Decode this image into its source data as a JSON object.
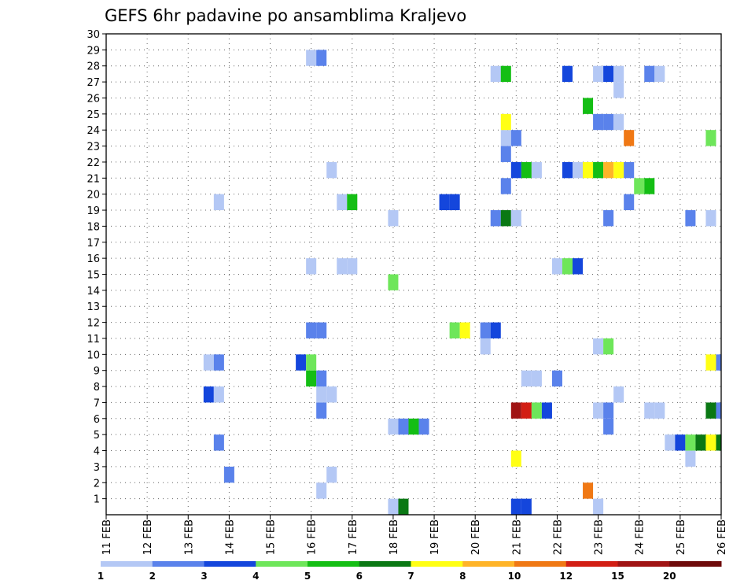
{
  "chart_data": {
    "type": "heatmap",
    "title": "GEFS 6hr padavine po ansamblima Kraljevo",
    "xlabel": "",
    "ylabel": "",
    "x_tick_labels": [
      "11 FEB",
      "12 FEB",
      "13 FEB",
      "14 FEB",
      "15 FEB",
      "16 FEB",
      "17 FEB",
      "18 FEB",
      "19 FEB",
      "20 FEB",
      "21 FEB",
      "22 FEB",
      "23 FEB",
      "24 FEB",
      "25 FEB",
      "26 FEB"
    ],
    "xlim": [
      11,
      26
    ],
    "y_tick_labels": [
      "1",
      "2",
      "3",
      "4",
      "5",
      "6",
      "7",
      "8",
      "9",
      "10",
      "11",
      "12",
      "13",
      "14",
      "15",
      "16",
      "17",
      "18",
      "19",
      "20",
      "21",
      "22",
      "23",
      "24",
      "25",
      "26",
      "27",
      "28",
      "29",
      "30"
    ],
    "ylim": [
      0,
      30
    ],
    "grid": true,
    "legend_position": "bottom",
    "colorbar": {
      "colors": [
        "#b4c8f5",
        "#5a82eb",
        "#1446dc",
        "#6ee65a",
        "#14be14",
        "#0a7814",
        "#ffff14",
        "#ffb428",
        "#f07814",
        "#d21e14",
        "#a01414",
        "#6e0a0a"
      ],
      "labels": [
        "1",
        "2",
        "3",
        "4",
        "5",
        "6",
        "7",
        "8",
        "10",
        "12",
        "15",
        "20"
      ]
    },
    "cells": [
      {
        "x": 18.0,
        "y": 0,
        "c": 1
      },
      {
        "x": 18.25,
        "y": 0,
        "c": 6
      },
      {
        "x": 21.0,
        "y": 0,
        "c": 3
      },
      {
        "x": 21.25,
        "y": 0,
        "c": 3
      },
      {
        "x": 23.0,
        "y": 0,
        "c": 1
      },
      {
        "x": 16.25,
        "y": 1,
        "c": 1
      },
      {
        "x": 22.75,
        "y": 1,
        "c": 9
      },
      {
        "x": 14.0,
        "y": 2,
        "c": 2
      },
      {
        "x": 16.5,
        "y": 2,
        "c": 1
      },
      {
        "x": 21.0,
        "y": 3,
        "c": 7
      },
      {
        "x": 25.25,
        "y": 3,
        "c": 1
      },
      {
        "x": 13.75,
        "y": 4,
        "c": 2
      },
      {
        "x": 24.75,
        "y": 4,
        "c": 1
      },
      {
        "x": 25.0,
        "y": 4,
        "c": 3
      },
      {
        "x": 25.25,
        "y": 4,
        "c": 4
      },
      {
        "x": 25.5,
        "y": 4,
        "c": 6
      },
      {
        "x": 25.75,
        "y": 4,
        "c": 7
      },
      {
        "x": 26.0,
        "y": 4,
        "c": 6
      },
      {
        "x": 18.0,
        "y": 5,
        "c": 1
      },
      {
        "x": 18.25,
        "y": 5,
        "c": 2
      },
      {
        "x": 18.5,
        "y": 5,
        "c": 5
      },
      {
        "x": 18.75,
        "y": 5,
        "c": 2
      },
      {
        "x": 23.25,
        "y": 5,
        "c": 2
      },
      {
        "x": 16.25,
        "y": 6,
        "c": 2
      },
      {
        "x": 21.0,
        "y": 6,
        "c": 11
      },
      {
        "x": 21.25,
        "y": 6,
        "c": 10
      },
      {
        "x": 21.5,
        "y": 6,
        "c": 4
      },
      {
        "x": 21.75,
        "y": 6,
        "c": 3
      },
      {
        "x": 23.0,
        "y": 6,
        "c": 1
      },
      {
        "x": 23.25,
        "y": 6,
        "c": 2
      },
      {
        "x": 24.25,
        "y": 6,
        "c": 1
      },
      {
        "x": 24.5,
        "y": 6,
        "c": 1
      },
      {
        "x": 25.75,
        "y": 6,
        "c": 6
      },
      {
        "x": 26.0,
        "y": 6,
        "c": 2
      },
      {
        "x": 13.5,
        "y": 7,
        "c": 3
      },
      {
        "x": 13.75,
        "y": 7,
        "c": 1
      },
      {
        "x": 16.25,
        "y": 7,
        "c": 1
      },
      {
        "x": 16.5,
        "y": 7,
        "c": 1
      },
      {
        "x": 23.5,
        "y": 7,
        "c": 1
      },
      {
        "x": 16.0,
        "y": 8,
        "c": 5
      },
      {
        "x": 16.25,
        "y": 8,
        "c": 2
      },
      {
        "x": 21.25,
        "y": 8,
        "c": 1
      },
      {
        "x": 21.5,
        "y": 8,
        "c": 1
      },
      {
        "x": 22.0,
        "y": 8,
        "c": 2
      },
      {
        "x": 13.5,
        "y": 9,
        "c": 1
      },
      {
        "x": 13.75,
        "y": 9,
        "c": 2
      },
      {
        "x": 15.75,
        "y": 9,
        "c": 3
      },
      {
        "x": 16.0,
        "y": 9,
        "c": 4
      },
      {
        "x": 25.75,
        "y": 9,
        "c": 7
      },
      {
        "x": 26.0,
        "y": 9,
        "c": 2
      },
      {
        "x": 20.25,
        "y": 10,
        "c": 1
      },
      {
        "x": 23.0,
        "y": 10,
        "c": 1
      },
      {
        "x": 23.25,
        "y": 10,
        "c": 4
      },
      {
        "x": 16.0,
        "y": 11,
        "c": 2
      },
      {
        "x": 16.25,
        "y": 11,
        "c": 2
      },
      {
        "x": 19.5,
        "y": 11,
        "c": 4
      },
      {
        "x": 19.75,
        "y": 11,
        "c": 7
      },
      {
        "x": 20.25,
        "y": 11,
        "c": 2
      },
      {
        "x": 20.5,
        "y": 11,
        "c": 3
      },
      {
        "x": 18.0,
        "y": 14,
        "c": 4
      },
      {
        "x": 16.0,
        "y": 15,
        "c": 1
      },
      {
        "x": 16.75,
        "y": 15,
        "c": 1
      },
      {
        "x": 17.0,
        "y": 15,
        "c": 1
      },
      {
        "x": 22.0,
        "y": 15,
        "c": 1
      },
      {
        "x": 22.25,
        "y": 15,
        "c": 4
      },
      {
        "x": 22.5,
        "y": 15,
        "c": 3
      },
      {
        "x": 18.0,
        "y": 18,
        "c": 1
      },
      {
        "x": 20.5,
        "y": 18,
        "c": 2
      },
      {
        "x": 20.75,
        "y": 18,
        "c": 6
      },
      {
        "x": 21.0,
        "y": 18,
        "c": 1
      },
      {
        "x": 23.25,
        "y": 18,
        "c": 2
      },
      {
        "x": 25.25,
        "y": 18,
        "c": 2
      },
      {
        "x": 25.75,
        "y": 18,
        "c": 1
      },
      {
        "x": 13.75,
        "y": 19,
        "c": 1
      },
      {
        "x": 16.75,
        "y": 19,
        "c": 1
      },
      {
        "x": 17.0,
        "y": 19,
        "c": 5
      },
      {
        "x": 19.25,
        "y": 19,
        "c": 3
      },
      {
        "x": 19.5,
        "y": 19,
        "c": 3
      },
      {
        "x": 23.75,
        "y": 19,
        "c": 2
      },
      {
        "x": 20.75,
        "y": 20,
        "c": 2
      },
      {
        "x": 24.0,
        "y": 20,
        "c": 4
      },
      {
        "x": 24.25,
        "y": 20,
        "c": 5
      },
      {
        "x": 16.5,
        "y": 21,
        "c": 1
      },
      {
        "x": 21.0,
        "y": 21,
        "c": 3
      },
      {
        "x": 21.25,
        "y": 21,
        "c": 5
      },
      {
        "x": 21.5,
        "y": 21,
        "c": 1
      },
      {
        "x": 22.25,
        "y": 21,
        "c": 3
      },
      {
        "x": 22.5,
        "y": 21,
        "c": 1
      },
      {
        "x": 22.75,
        "y": 21,
        "c": 7
      },
      {
        "x": 23.0,
        "y": 21,
        "c": 5
      },
      {
        "x": 23.25,
        "y": 21,
        "c": 8
      },
      {
        "x": 23.5,
        "y": 21,
        "c": 7
      },
      {
        "x": 23.75,
        "y": 21,
        "c": 2
      },
      {
        "x": 20.75,
        "y": 22,
        "c": 2
      },
      {
        "x": 20.75,
        "y": 23,
        "c": 1
      },
      {
        "x": 21.0,
        "y": 23,
        "c": 2
      },
      {
        "x": 23.75,
        "y": 23,
        "c": 9
      },
      {
        "x": 25.75,
        "y": 23,
        "c": 4
      },
      {
        "x": 20.75,
        "y": 24,
        "c": 7
      },
      {
        "x": 23.0,
        "y": 24,
        "c": 2
      },
      {
        "x": 23.25,
        "y": 24,
        "c": 2
      },
      {
        "x": 23.5,
        "y": 24,
        "c": 1
      },
      {
        "x": 22.75,
        "y": 25,
        "c": 5
      },
      {
        "x": 23.5,
        "y": 26,
        "c": 1
      },
      {
        "x": 20.5,
        "y": 27,
        "c": 1
      },
      {
        "x": 20.75,
        "y": 27,
        "c": 5
      },
      {
        "x": 22.25,
        "y": 27,
        "c": 3
      },
      {
        "x": 23.0,
        "y": 27,
        "c": 1
      },
      {
        "x": 23.25,
        "y": 27,
        "c": 3
      },
      {
        "x": 23.5,
        "y": 27,
        "c": 1
      },
      {
        "x": 24.25,
        "y": 27,
        "c": 2
      },
      {
        "x": 24.5,
        "y": 27,
        "c": 1
      },
      {
        "x": 16.0,
        "y": 28,
        "c": 1
      },
      {
        "x": 16.25,
        "y": 28,
        "c": 2
      }
    ]
  }
}
